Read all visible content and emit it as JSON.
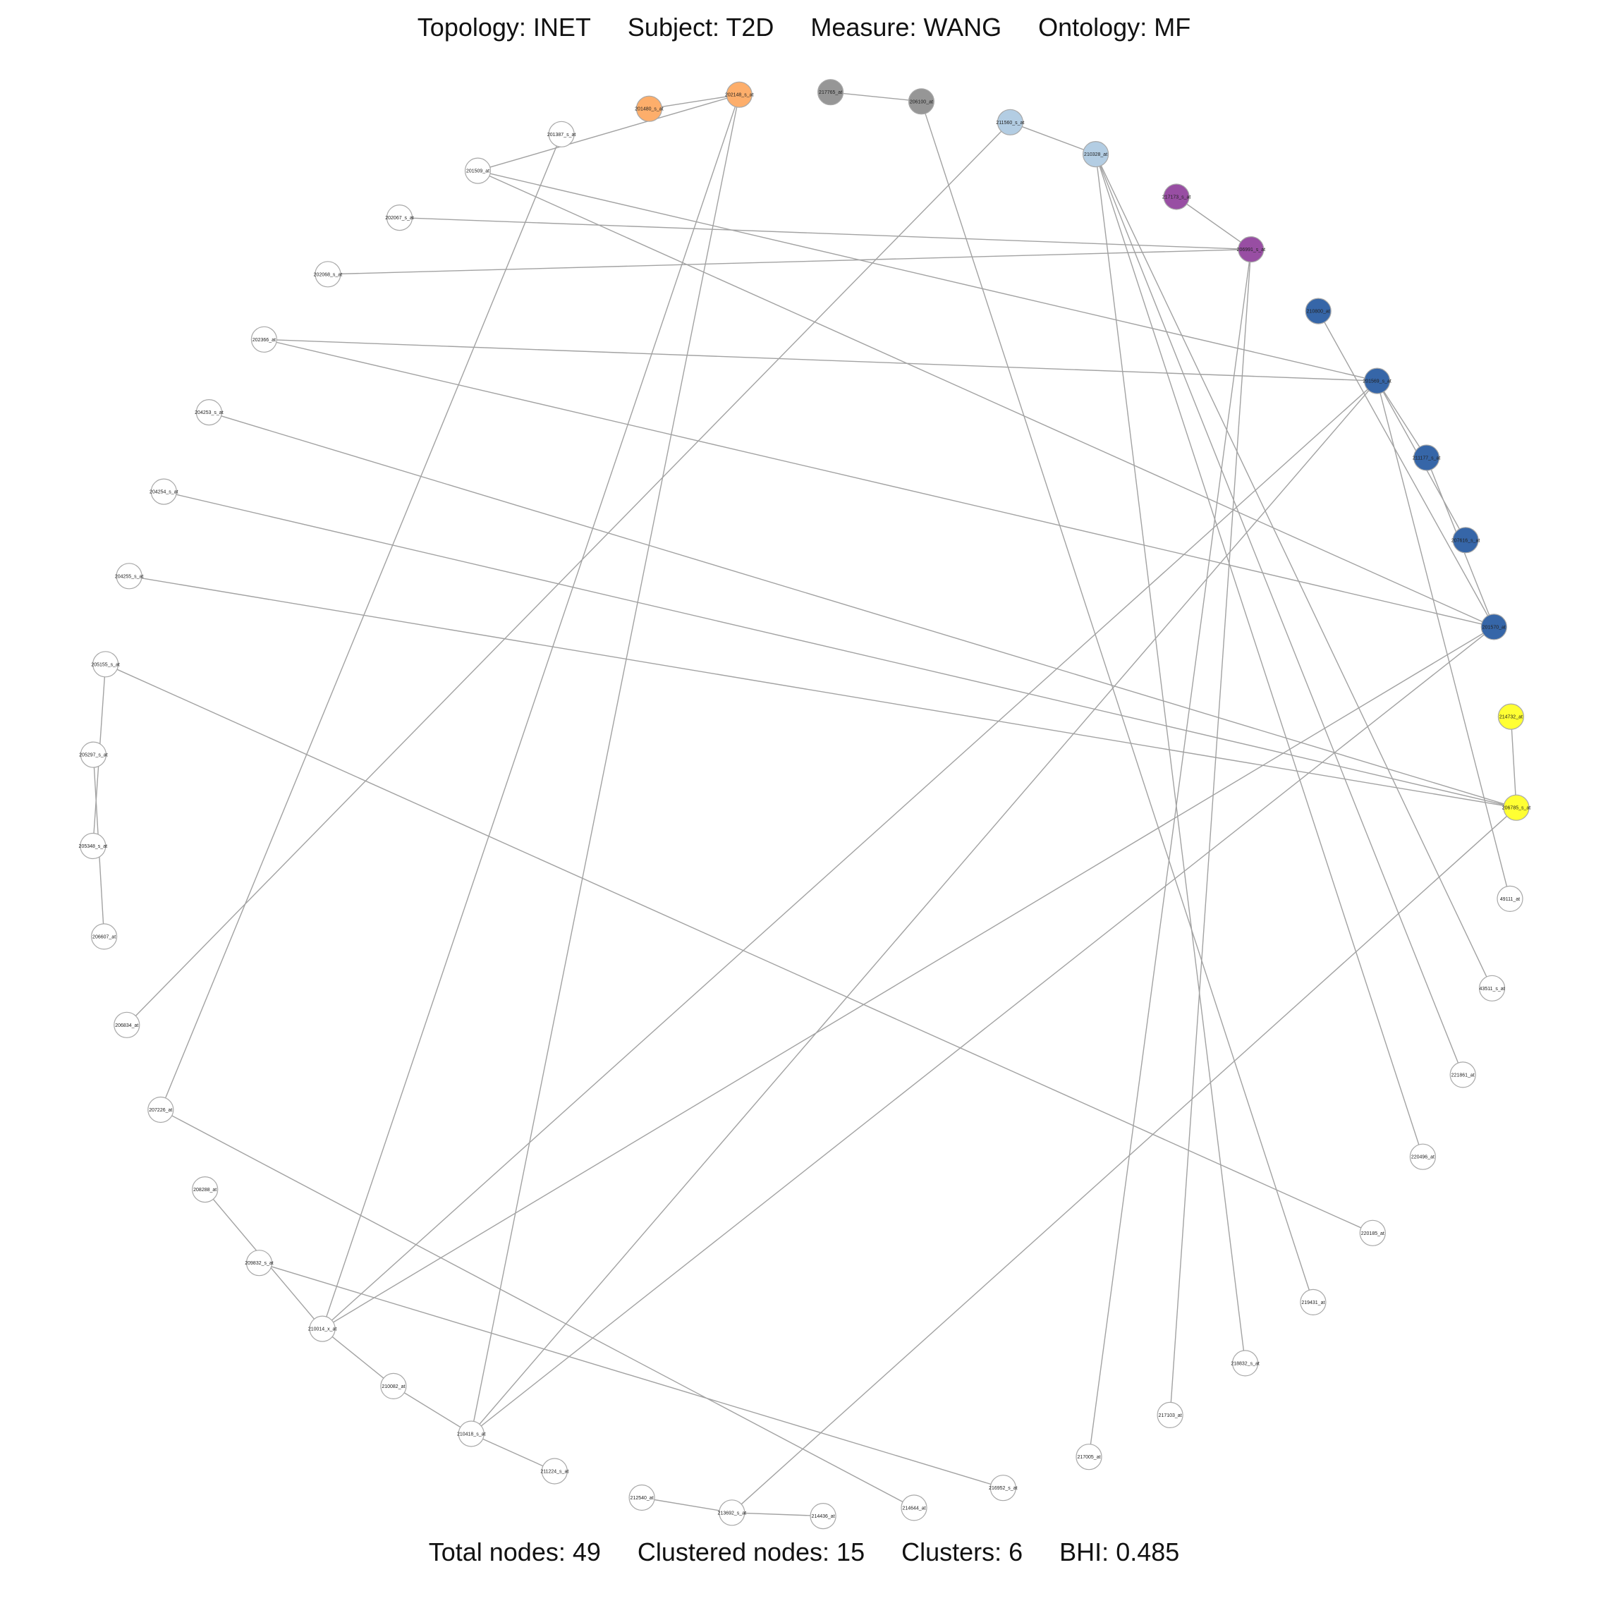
{
  "header": {
    "topology": "Topology: INET",
    "subject": "Subject: T2D",
    "measure": "Measure: WANG",
    "ontology": "Ontology: MF"
  },
  "footer": {
    "total_nodes": "Total nodes: 49",
    "clustered_nodes": "Clustered nodes: 15",
    "clusters": "Clusters: 6",
    "bhi": "BHI: 0.485"
  },
  "colors": {
    "orange": "#fdae6b",
    "gray": "#969696",
    "lightblue": "#b3cde3",
    "purple": "#984ea3",
    "blue": "#3666a8",
    "yellow": "#ffff33",
    "none": "#ffffff"
  },
  "nodes": [
    {
      "id": "201480_s_at",
      "color": "orange"
    },
    {
      "id": "202148_s_at",
      "color": "orange"
    },
    {
      "id": "217765_at",
      "color": "gray"
    },
    {
      "id": "206100_at",
      "color": "gray"
    },
    {
      "id": "211560_s_at",
      "color": "lightblue"
    },
    {
      "id": "210328_at",
      "color": "lightblue"
    },
    {
      "id": "217173_s_at",
      "color": "purple"
    },
    {
      "id": "206991_s_at",
      "color": "purple"
    },
    {
      "id": "210800_at",
      "color": "blue"
    },
    {
      "id": "201569_s_at",
      "color": "blue"
    },
    {
      "id": "211177_s_at",
      "color": "blue"
    },
    {
      "id": "207616_s_at",
      "color": "blue"
    },
    {
      "id": "201570_at",
      "color": "blue"
    },
    {
      "id": "214732_at",
      "color": "yellow"
    },
    {
      "id": "206785_s_at",
      "color": "yellow"
    },
    {
      "id": "49111_at",
      "color": "none"
    },
    {
      "id": "43511_s_at",
      "color": "none"
    },
    {
      "id": "221861_at",
      "color": "none"
    },
    {
      "id": "220496_at",
      "color": "none"
    },
    {
      "id": "220185_at",
      "color": "none"
    },
    {
      "id": "219431_at",
      "color": "none"
    },
    {
      "id": "218832_s_at",
      "color": "none"
    },
    {
      "id": "217103_at",
      "color": "none"
    },
    {
      "id": "217005_at",
      "color": "none"
    },
    {
      "id": "216952_s_at",
      "color": "none"
    },
    {
      "id": "214644_at",
      "color": "none"
    },
    {
      "id": "214436_at",
      "color": "none"
    },
    {
      "id": "213692_s_at",
      "color": "none"
    },
    {
      "id": "212540_at",
      "color": "none"
    },
    {
      "id": "211224_s_at",
      "color": "none"
    },
    {
      "id": "210418_s_at",
      "color": "none"
    },
    {
      "id": "210082_at",
      "color": "none"
    },
    {
      "id": "210014_x_at",
      "color": "none"
    },
    {
      "id": "209832_s_at",
      "color": "none"
    },
    {
      "id": "208288_at",
      "color": "none"
    },
    {
      "id": "207226_at",
      "color": "none"
    },
    {
      "id": "206834_at",
      "color": "none"
    },
    {
      "id": "206607_at",
      "color": "none"
    },
    {
      "id": "205348_s_at",
      "color": "none"
    },
    {
      "id": "205297_s_at",
      "color": "none"
    },
    {
      "id": "205155_s_at",
      "color": "none"
    },
    {
      "id": "204255_s_at",
      "color": "none"
    },
    {
      "id": "204254_s_at",
      "color": "none"
    },
    {
      "id": "204253_s_at",
      "color": "none"
    },
    {
      "id": "202366_at",
      "color": "none"
    },
    {
      "id": "202068_s_at",
      "color": "none"
    },
    {
      "id": "202067_s_at",
      "color": "none"
    },
    {
      "id": "201509_at",
      "color": "none"
    },
    {
      "id": "201387_s_at",
      "color": "none"
    }
  ],
  "edges": [
    [
      "201480_s_at",
      "202148_s_at"
    ],
    [
      "202148_s_at",
      "201509_at"
    ],
    [
      "202148_s_at",
      "210014_x_at"
    ],
    [
      "202148_s_at",
      "210418_s_at"
    ],
    [
      "217765_at",
      "206100_at"
    ],
    [
      "206100_at",
      "219431_at"
    ],
    [
      "211560_s_at",
      "210328_at"
    ],
    [
      "211560_s_at",
      "206834_at"
    ],
    [
      "210328_at",
      "218832_s_at"
    ],
    [
      "210328_at",
      "221861_at"
    ],
    [
      "210328_at",
      "43511_s_at"
    ],
    [
      "210328_at",
      "220496_at"
    ],
    [
      "217173_s_at",
      "206991_s_at"
    ],
    [
      "206991_s_at",
      "202067_s_at"
    ],
    [
      "206991_s_at",
      "202068_s_at"
    ],
    [
      "206991_s_at",
      "217005_at"
    ],
    [
      "206991_s_at",
      "217103_at"
    ],
    [
      "210800_at",
      "201570_at"
    ],
    [
      "201569_s_at",
      "207616_s_at"
    ],
    [
      "201569_s_at",
      "211177_s_at"
    ],
    [
      "201569_s_at",
      "201509_at"
    ],
    [
      "201569_s_at",
      "202366_at"
    ],
    [
      "201569_s_at",
      "210014_x_at"
    ],
    [
      "201569_s_at",
      "210418_s_at"
    ],
    [
      "201569_s_at",
      "49111_at"
    ],
    [
      "211177_s_at",
      "201570_at"
    ],
    [
      "201570_at",
      "201509_at"
    ],
    [
      "201570_at",
      "202366_at"
    ],
    [
      "201570_at",
      "210014_x_at"
    ],
    [
      "201570_at",
      "210418_s_at"
    ],
    [
      "214732_at",
      "206785_s_at"
    ],
    [
      "206785_s_at",
      "204253_s_at"
    ],
    [
      "206785_s_at",
      "204254_s_at"
    ],
    [
      "206785_s_at",
      "204255_s_at"
    ],
    [
      "206785_s_at",
      "213692_s_at"
    ],
    [
      "205155_s_at",
      "205348_s_at"
    ],
    [
      "205155_s_at",
      "220185_at"
    ],
    [
      "205297_s_at",
      "206607_at"
    ],
    [
      "201387_s_at",
      "207226_at"
    ],
    [
      "207226_at",
      "214644_at"
    ],
    [
      "208288_at",
      "210014_x_at"
    ],
    [
      "210014_x_at",
      "210082_at"
    ],
    [
      "210082_at",
      "210418_s_at"
    ],
    [
      "210418_s_at",
      "211224_s_at"
    ],
    [
      "209832_s_at",
      "216952_s_at"
    ],
    [
      "212540_at",
      "213692_s_at"
    ],
    [
      "213692_s_at",
      "214436_at"
    ]
  ]
}
